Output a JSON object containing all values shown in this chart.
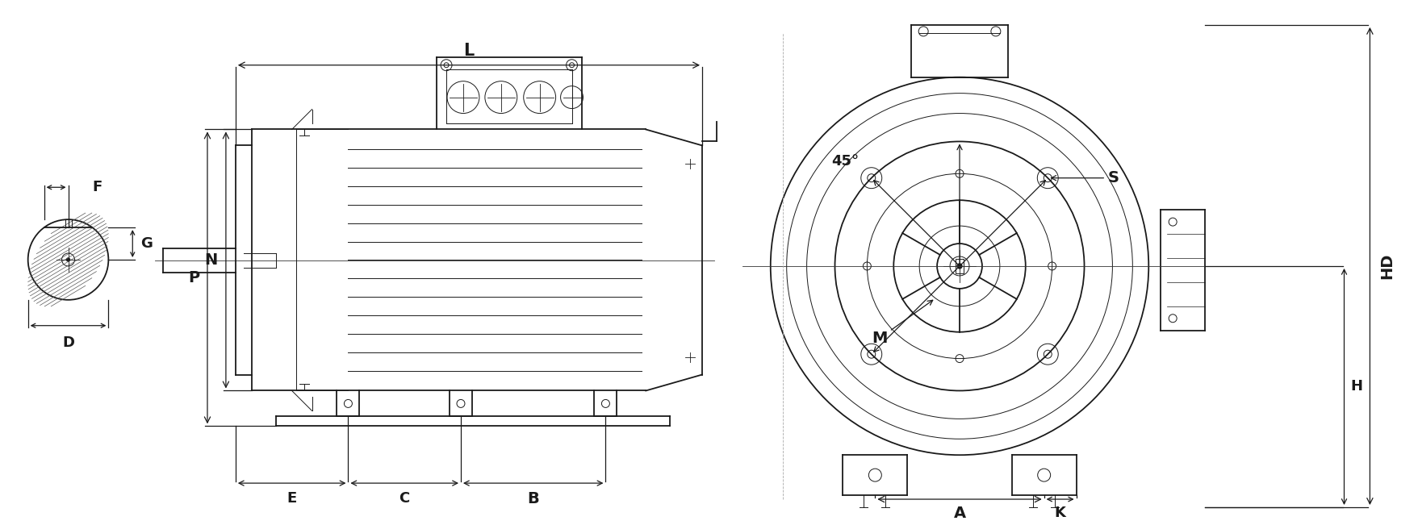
{
  "bg_color": "#ffffff",
  "line_color": "#1a1a1a",
  "fig_width": 17.57,
  "fig_height": 6.51,
  "labels": {
    "L": "L",
    "B": "B",
    "C": "C",
    "E": "E",
    "P": "P",
    "N": "N",
    "F": "F",
    "G": "G",
    "D": "D",
    "S": "S",
    "M": "M",
    "A": "A",
    "K": "K",
    "H": "H",
    "HD": "HD",
    "angle": "45°"
  },
  "font_size": 13
}
